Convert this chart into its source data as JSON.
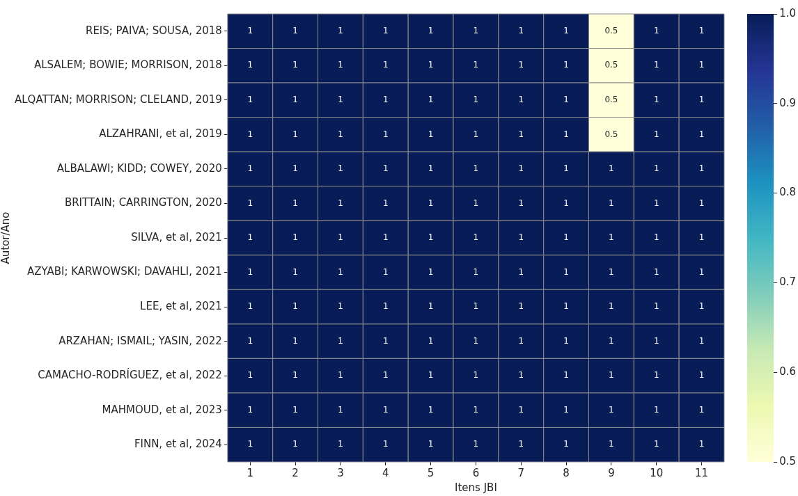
{
  "chart_data": {
    "type": "heatmap",
    "xlabel": "Itens JBI",
    "ylabel": "Autor/Ano",
    "categories": [
      "1",
      "2",
      "3",
      "4",
      "5",
      "6",
      "7",
      "8",
      "9",
      "10",
      "11"
    ],
    "y_categories": [
      "REIS; PAIVA; SOUSA, 2018",
      "ALSALEM; BOWIE; MORRISON, 2018",
      "ALQATTAN; MORRISON; CLELAND, 2019",
      "ALZAHRANI, et al, 2019",
      "ALBALAWI; KIDD; COWEY, 2020",
      "BRITTAIN; CARRINGTON, 2020",
      "SILVA, et al, 2021",
      "AZYABI; KARWOWSKI; DAVAHLI, 2021",
      "LEE, et al, 2021",
      "ARZAHAN; ISMAIL; YASIN, 2022",
      "CAMACHO-RODRÍGUEZ, et al, 2022",
      "MAHMOUD, et al, 2023",
      "FINN, et al, 2024"
    ],
    "cells": [
      [
        1,
        1,
        1,
        1,
        1,
        1,
        1,
        1,
        0.5,
        1,
        1
      ],
      [
        1,
        1,
        1,
        1,
        1,
        1,
        1,
        1,
        0.5,
        1,
        1
      ],
      [
        1,
        1,
        1,
        1,
        1,
        1,
        1,
        1,
        0.5,
        1,
        1
      ],
      [
        1,
        1,
        1,
        1,
        1,
        1,
        1,
        1,
        0.5,
        1,
        1
      ],
      [
        1,
        1,
        1,
        1,
        1,
        1,
        1,
        1,
        1,
        1,
        1
      ],
      [
        1,
        1,
        1,
        1,
        1,
        1,
        1,
        1,
        1,
        1,
        1
      ],
      [
        1,
        1,
        1,
        1,
        1,
        1,
        1,
        1,
        1,
        1,
        1
      ],
      [
        1,
        1,
        1,
        1,
        1,
        1,
        1,
        1,
        1,
        1,
        1
      ],
      [
        1,
        1,
        1,
        1,
        1,
        1,
        1,
        1,
        1,
        1,
        1
      ],
      [
        1,
        1,
        1,
        1,
        1,
        1,
        1,
        1,
        1,
        1,
        1
      ],
      [
        1,
        1,
        1,
        1,
        1,
        1,
        1,
        1,
        1,
        1,
        1
      ],
      [
        1,
        1,
        1,
        1,
        1,
        1,
        1,
        1,
        1,
        1,
        1
      ],
      [
        1,
        1,
        1,
        1,
        1,
        1,
        1,
        1,
        1,
        1,
        1
      ]
    ],
    "clim": [
      0.5,
      1
    ],
    "cticks": [
      0.5,
      0.6,
      0.7,
      0.8,
      0.9,
      {
        "value": 1,
        "label": "1.0"
      }
    ],
    "data_labels": true
  }
}
